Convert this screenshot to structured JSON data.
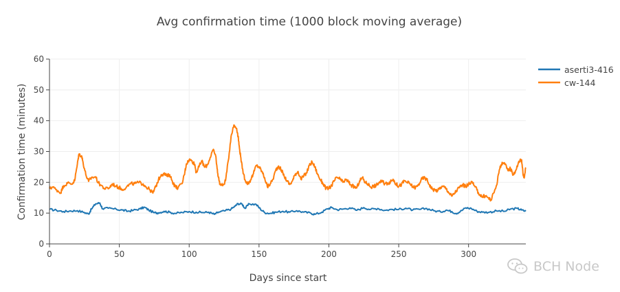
{
  "colors": {
    "series1": "#1f77b4",
    "series2": "#ff7f0e",
    "grid": "#eeeeee",
    "axis": "#444444",
    "modebar": "#a8a8a8",
    "modebar_active": "#3f8fdc"
  },
  "toolbar": {
    "icons": [
      "camera-icon",
      "zoom-icon",
      "pan-icon",
      "zoom-in-icon",
      "zoom-out-icon",
      "autoscale-icon",
      "home-icon",
      "spike-lines-icon",
      "hover-closest-icon",
      "hover-compare-icon",
      "plotly-logo-icon"
    ]
  },
  "watermark": {
    "text": "BCH Node",
    "icon": "wechat-icon"
  },
  "chart_data": {
    "type": "line",
    "title": "Avg confirmation time (1000 block moving average)",
    "xlabel": "Days since start",
    "ylabel": "Confirmation time (minutes)",
    "xlim": [
      0,
      341
    ],
    "ylim": [
      0,
      60
    ],
    "x_ticks": [
      0,
      50,
      100,
      150,
      200,
      250,
      300
    ],
    "y_ticks": [
      0,
      10,
      20,
      30,
      40,
      50,
      60
    ],
    "grid": true,
    "legend_position": "top-right",
    "series": [
      {
        "name": "aserti3-416",
        "color": "#1f77b4",
        "points": [
          [
            0,
            11.2
          ],
          [
            5,
            10.9
          ],
          [
            10,
            10.5
          ],
          [
            15,
            10.7
          ],
          [
            20,
            10.8
          ],
          [
            25,
            10.2
          ],
          [
            28,
            9.7
          ],
          [
            30,
            11.3
          ],
          [
            33,
            13.0
          ],
          [
            36,
            13.3
          ],
          [
            38,
            11.4
          ],
          [
            42,
            11.6
          ],
          [
            48,
            11.2
          ],
          [
            52,
            11.0
          ],
          [
            56,
            10.6
          ],
          [
            60,
            10.9
          ],
          [
            65,
            11.4
          ],
          [
            68,
            11.9
          ],
          [
            71,
            11.0
          ],
          [
            75,
            10.1
          ],
          [
            78,
            10.1
          ],
          [
            82,
            10.6
          ],
          [
            86,
            10.3
          ],
          [
            90,
            9.9
          ],
          [
            95,
            10.2
          ],
          [
            100,
            10.5
          ],
          [
            105,
            10.3
          ],
          [
            110,
            10.2
          ],
          [
            114,
            10.3
          ],
          [
            118,
            9.6
          ],
          [
            121,
            10.3
          ],
          [
            126,
            10.8
          ],
          [
            130,
            11.3
          ],
          [
            133,
            12.3
          ],
          [
            135,
            13.1
          ],
          [
            138,
            12.9
          ],
          [
            140,
            11.5
          ],
          [
            143,
            13.0
          ],
          [
            148,
            12.8
          ],
          [
            151,
            11.3
          ],
          [
            154,
            10.2
          ],
          [
            158,
            9.9
          ],
          [
            162,
            10.3
          ],
          [
            167,
            10.6
          ],
          [
            172,
            10.3
          ],
          [
            177,
            10.8
          ],
          [
            182,
            10.3
          ],
          [
            187,
            10.0
          ],
          [
            190,
            9.6
          ],
          [
            195,
            10.3
          ],
          [
            199,
            11.4
          ],
          [
            202,
            11.8
          ],
          [
            206,
            11.1
          ],
          [
            210,
            11.3
          ],
          [
            215,
            11.7
          ],
          [
            220,
            10.9
          ],
          [
            225,
            11.8
          ],
          [
            230,
            11.2
          ],
          [
            235,
            11.5
          ],
          [
            240,
            10.9
          ],
          [
            245,
            11.2
          ],
          [
            250,
            11.2
          ],
          [
            255,
            11.6
          ],
          [
            260,
            11.0
          ],
          [
            265,
            11.2
          ],
          [
            270,
            11.5
          ],
          [
            275,
            10.8
          ],
          [
            280,
            10.4
          ],
          [
            284,
            11.0
          ],
          [
            288,
            10.5
          ],
          [
            291,
            9.9
          ],
          [
            294,
            10.5
          ],
          [
            298,
            11.7
          ],
          [
            302,
            11.5
          ],
          [
            306,
            10.6
          ],
          [
            310,
            10.3
          ],
          [
            315,
            10.3
          ],
          [
            320,
            10.7
          ],
          [
            326,
            10.6
          ],
          [
            330,
            11.3
          ],
          [
            335,
            11.5
          ],
          [
            338,
            11.0
          ],
          [
            341,
            10.6
          ]
        ]
      },
      {
        "name": "cw-144",
        "color": "#ff7f0e",
        "points": [
          [
            0,
            18.0
          ],
          [
            2,
            18.5
          ],
          [
            5,
            17.6
          ],
          [
            8,
            16.6
          ],
          [
            10,
            18.9
          ],
          [
            13,
            19.7
          ],
          [
            16,
            19.5
          ],
          [
            18,
            20.5
          ],
          [
            20,
            26.0
          ],
          [
            21,
            29.1
          ],
          [
            23,
            28.6
          ],
          [
            24,
            26.5
          ],
          [
            26,
            22.5
          ],
          [
            28,
            20.3
          ],
          [
            30,
            21.5
          ],
          [
            33,
            21.8
          ],
          [
            35,
            19.8
          ],
          [
            37,
            19.0
          ],
          [
            40,
            17.8
          ],
          [
            43,
            18.3
          ],
          [
            45,
            19.5
          ],
          [
            48,
            18.6
          ],
          [
            50,
            18.3
          ],
          [
            52,
            17.7
          ],
          [
            55,
            18.4
          ],
          [
            58,
            19.5
          ],
          [
            61,
            19.6
          ],
          [
            64,
            19.9
          ],
          [
            67,
            19.5
          ],
          [
            69,
            18.6
          ],
          [
            72,
            17.5
          ],
          [
            74,
            16.5
          ],
          [
            76,
            18.5
          ],
          [
            78,
            20.8
          ],
          [
            80,
            22.5
          ],
          [
            82,
            22.8
          ],
          [
            84,
            22.0
          ],
          [
            86,
            22.5
          ],
          [
            88,
            20.3
          ],
          [
            90,
            18.6
          ],
          [
            92,
            18.2
          ],
          [
            95,
            19.6
          ],
          [
            97,
            23.6
          ],
          [
            98,
            26.0
          ],
          [
            100,
            27.3
          ],
          [
            102,
            27.0
          ],
          [
            104,
            25.8
          ],
          [
            105,
            23.2
          ],
          [
            107,
            25.0
          ],
          [
            109,
            27.0
          ],
          [
            111,
            24.9
          ],
          [
            113,
            25.6
          ],
          [
            115,
            28.0
          ],
          [
            117,
            30.5
          ],
          [
            119,
            28.6
          ],
          [
            120,
            24.4
          ],
          [
            121,
            21.5
          ],
          [
            122,
            19.5
          ],
          [
            124,
            18.9
          ],
          [
            126,
            20.5
          ],
          [
            128,
            27.0
          ],
          [
            130,
            35.0
          ],
          [
            132,
            38.6
          ],
          [
            134,
            37.5
          ],
          [
            135,
            35.0
          ],
          [
            136,
            31.0
          ],
          [
            137,
            28.0
          ],
          [
            138,
            24.5
          ],
          [
            140,
            20.8
          ],
          [
            142,
            19.5
          ],
          [
            144,
            20.8
          ],
          [
            146,
            22.8
          ],
          [
            148,
            25.5
          ],
          [
            150,
            25.0
          ],
          [
            152,
            23.6
          ],
          [
            154,
            21.5
          ],
          [
            156,
            18.5
          ],
          [
            158,
            19.5
          ],
          [
            160,
            21.0
          ],
          [
            162,
            24.0
          ],
          [
            164,
            25.3
          ],
          [
            166,
            24.0
          ],
          [
            168,
            22.0
          ],
          [
            170,
            20.5
          ],
          [
            172,
            19.3
          ],
          [
            174,
            20.5
          ],
          [
            176,
            22.7
          ],
          [
            178,
            23.5
          ],
          [
            180,
            21.0
          ],
          [
            182,
            22.0
          ],
          [
            184,
            23.0
          ],
          [
            186,
            25.5
          ],
          [
            188,
            26.6
          ],
          [
            190,
            25.0
          ],
          [
            192,
            22.5
          ],
          [
            194,
            20.8
          ],
          [
            196,
            19.5
          ],
          [
            198,
            18.0
          ],
          [
            200,
            18.0
          ],
          [
            202,
            19.0
          ],
          [
            204,
            20.6
          ],
          [
            206,
            21.6
          ],
          [
            208,
            21.0
          ],
          [
            210,
            20.0
          ],
          [
            212,
            20.8
          ],
          [
            214,
            20.2
          ],
          [
            216,
            19.0
          ],
          [
            218,
            18.5
          ],
          [
            220,
            18.2
          ],
          [
            222,
            20.5
          ],
          [
            224,
            21.5
          ],
          [
            226,
            20.0
          ],
          [
            228,
            19.5
          ],
          [
            230,
            18.5
          ],
          [
            232,
            18.8
          ],
          [
            234,
            19.0
          ],
          [
            236,
            20.0
          ],
          [
            238,
            20.3
          ],
          [
            240,
            19.5
          ],
          [
            242,
            19.8
          ],
          [
            244,
            20.0
          ],
          [
            246,
            21.0
          ],
          [
            248,
            19.5
          ],
          [
            250,
            18.7
          ],
          [
            252,
            19.3
          ],
          [
            254,
            20.5
          ],
          [
            256,
            20.0
          ],
          [
            258,
            19.5
          ],
          [
            260,
            18.6
          ],
          [
            262,
            18.3
          ],
          [
            264,
            19.0
          ],
          [
            266,
            20.8
          ],
          [
            268,
            21.5
          ],
          [
            270,
            21.0
          ],
          [
            272,
            19.2
          ],
          [
            274,
            17.8
          ],
          [
            276,
            17.5
          ],
          [
            278,
            17.3
          ],
          [
            280,
            18.4
          ],
          [
            282,
            18.6
          ],
          [
            284,
            18.0
          ],
          [
            286,
            16.6
          ],
          [
            288,
            15.5
          ],
          [
            290,
            16.5
          ],
          [
            292,
            17.7
          ],
          [
            294,
            18.5
          ],
          [
            296,
            19.2
          ],
          [
            298,
            18.6
          ],
          [
            300,
            19.3
          ],
          [
            302,
            20.3
          ],
          [
            304,
            18.9
          ],
          [
            306,
            17.5
          ],
          [
            308,
            16.0
          ],
          [
            310,
            15.3
          ],
          [
            312,
            15.6
          ],
          [
            314,
            15.0
          ],
          [
            316,
            14.2
          ],
          [
            318,
            16.5
          ],
          [
            320,
            19.0
          ],
          [
            322,
            24.0
          ],
          [
            324,
            26.5
          ],
          [
            326,
            25.8
          ],
          [
            328,
            24.0
          ],
          [
            330,
            24.5
          ],
          [
            332,
            22.5
          ],
          [
            334,
            24.0
          ],
          [
            336,
            26.8
          ],
          [
            338,
            27.3
          ],
          [
            339,
            22.5
          ],
          [
            340,
            21.8
          ],
          [
            341,
            24.8
          ]
        ]
      }
    ]
  }
}
